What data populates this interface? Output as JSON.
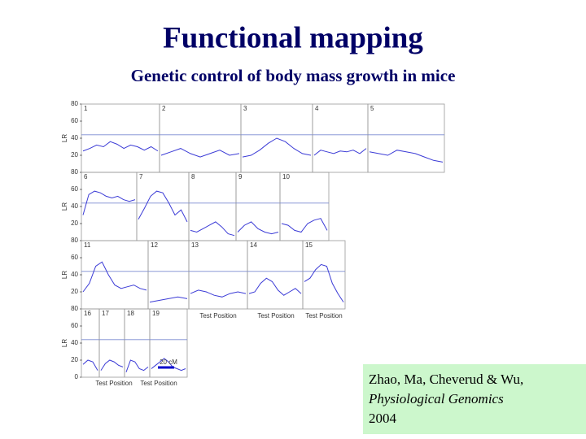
{
  "title": "Functional mapping",
  "subtitle": "Genetic control of body mass growth in mice",
  "figure": {
    "type": "line",
    "y_axis_label": "LR",
    "x_axis_label": "Test Position",
    "scale_label": "20 cM",
    "ylim": [
      0,
      80
    ],
    "yticks": [
      0,
      20,
      40,
      60,
      80
    ],
    "threshold": 44,
    "color": "#3b3bd6",
    "panels": [
      {
        "label": "1",
        "values": [
          25,
          28,
          32,
          30,
          36,
          33,
          28,
          32,
          30,
          26,
          30,
          25
        ]
      },
      {
        "label": "2",
        "values": [
          20,
          24,
          28,
          22,
          18,
          22,
          26,
          20,
          22
        ]
      },
      {
        "label": "3",
        "values": [
          18,
          20,
          26,
          34,
          40,
          36,
          28,
          22,
          20
        ]
      },
      {
        "label": "4",
        "values": [
          20,
          26,
          24,
          22,
          25,
          24,
          26,
          22,
          28
        ]
      },
      {
        "label": "5",
        "values": [
          24,
          22,
          20,
          26,
          24,
          22,
          18,
          14,
          12
        ]
      },
      {
        "label": "6",
        "values": [
          30,
          54,
          58,
          56,
          52,
          50,
          52,
          48,
          46,
          48
        ]
      },
      {
        "label": "7",
        "values": [
          25,
          38,
          52,
          58,
          56,
          44,
          30,
          36,
          22
        ]
      },
      {
        "label": "8",
        "values": [
          12,
          10,
          14,
          18,
          22,
          16,
          8,
          6
        ]
      },
      {
        "label": "9",
        "values": [
          10,
          18,
          22,
          14,
          10,
          8,
          10
        ]
      },
      {
        "label": "10",
        "values": [
          20,
          18,
          12,
          10,
          20,
          24,
          26,
          12
        ]
      },
      {
        "label": "11",
        "values": [
          20,
          30,
          50,
          55,
          40,
          28,
          24,
          26,
          28,
          24,
          22
        ]
      },
      {
        "label": "12",
        "values": [
          8,
          10,
          12,
          14,
          12
        ]
      },
      {
        "label": "13",
        "values": [
          18,
          22,
          20,
          16,
          14,
          18,
          20,
          18
        ]
      },
      {
        "label": "14",
        "values": [
          18,
          20,
          30,
          36,
          32,
          22,
          16,
          20,
          24,
          18
        ]
      },
      {
        "label": "15",
        "values": [
          32,
          36,
          46,
          52,
          50,
          30,
          18,
          8
        ]
      },
      {
        "label": "16",
        "values": [
          15,
          20,
          18,
          8
        ]
      },
      {
        "label": "17",
        "values": [
          8,
          16,
          20,
          18,
          14,
          12
        ]
      },
      {
        "label": "18",
        "values": [
          6,
          20,
          18,
          10,
          8,
          12
        ]
      },
      {
        "label": "19",
        "values": [
          10,
          14,
          18,
          22,
          18,
          12,
          10,
          8,
          10
        ]
      }
    ]
  },
  "citation": {
    "authors": "Zhao, Ma, Cheverud & Wu,",
    "journal": "Physiological Genomics",
    "year": "2004"
  }
}
